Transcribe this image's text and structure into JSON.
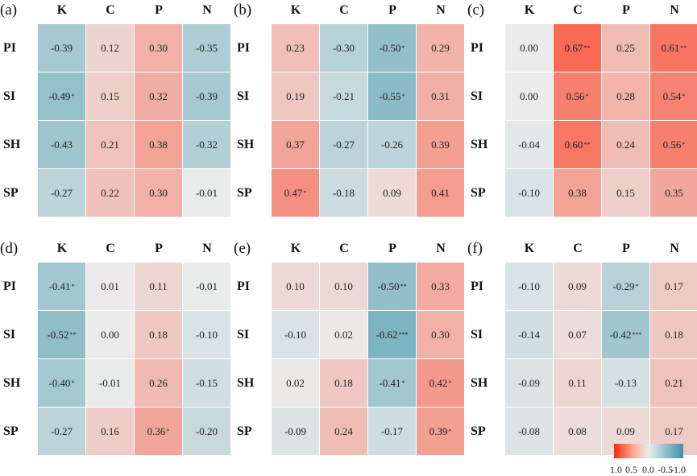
{
  "chart_data": {
    "type": "heatmap",
    "columns": [
      "K",
      "C",
      "P",
      "N"
    ],
    "rows": [
      "PI",
      "SI",
      "SH",
      "SP"
    ],
    "colorbar": {
      "ticks": [
        "1.0",
        "0.5",
        "0.0",
        "-0.5",
        "-1.0"
      ],
      "range": [
        1.0,
        -1.0
      ],
      "colors": {
        "pos": "#ff2a0a",
        "zero": "#ebebeb",
        "neg": "#3a93a8"
      }
    },
    "panels": [
      {
        "label": "(a)",
        "values": [
          [
            -0.39,
            0.12,
            0.3,
            -0.35
          ],
          [
            -0.49,
            0.15,
            0.32,
            -0.39
          ],
          [
            -0.43,
            0.21,
            0.38,
            -0.32
          ],
          [
            -0.27,
            0.22,
            0.3,
            -0.01
          ]
        ],
        "sig": [
          [
            "",
            "",
            "",
            ""
          ],
          [
            "*",
            "",
            "",
            ""
          ],
          [
            "",
            "",
            "",
            ""
          ],
          [
            "",
            "",
            "",
            ""
          ]
        ]
      },
      {
        "label": "(b)",
        "values": [
          [
            0.23,
            -0.3,
            -0.5,
            0.29
          ],
          [
            0.19,
            -0.21,
            -0.55,
            0.31
          ],
          [
            0.37,
            -0.27,
            -0.26,
            0.39
          ],
          [
            0.47,
            -0.18,
            0.09,
            0.41
          ]
        ],
        "sig": [
          [
            "",
            "",
            "*",
            ""
          ],
          [
            "",
            "",
            "*",
            ""
          ],
          [
            "",
            "",
            "",
            ""
          ],
          [
            "*",
            "",
            "",
            ""
          ]
        ]
      },
      {
        "label": "(c)",
        "values": [
          [
            0.0,
            0.67,
            0.25,
            0.61
          ],
          [
            0.0,
            0.56,
            0.28,
            0.54
          ],
          [
            -0.04,
            0.6,
            0.24,
            0.56
          ],
          [
            -0.1,
            0.38,
            0.15,
            0.35
          ]
        ],
        "sig": [
          [
            "",
            "**",
            "",
            "**"
          ],
          [
            "",
            "*",
            "",
            "*"
          ],
          [
            "",
            "**",
            "",
            "*"
          ],
          [
            "",
            "",
            "",
            ""
          ]
        ]
      },
      {
        "label": "(d)",
        "values": [
          [
            -0.41,
            0.01,
            0.11,
            -0.01
          ],
          [
            -0.52,
            0.0,
            0.18,
            -0.1
          ],
          [
            -0.4,
            -0.01,
            0.26,
            -0.15
          ],
          [
            -0.27,
            0.16,
            0.36,
            -0.2
          ]
        ],
        "sig": [
          [
            "*",
            "",
            "",
            ""
          ],
          [
            "**",
            "",
            "",
            ""
          ],
          [
            "*",
            "",
            "",
            ""
          ],
          [
            "",
            "",
            "*",
            ""
          ]
        ]
      },
      {
        "label": "(e)",
        "values": [
          [
            0.1,
            0.1,
            -0.5,
            0.33
          ],
          [
            -0.1,
            0.02,
            -0.62,
            0.3
          ],
          [
            0.02,
            0.18,
            -0.41,
            0.42
          ],
          [
            -0.09,
            0.24,
            -0.17,
            0.39
          ]
        ],
        "sig": [
          [
            "",
            "",
            "**",
            ""
          ],
          [
            "",
            "",
            "***",
            ""
          ],
          [
            "",
            "",
            "*",
            "*"
          ],
          [
            "",
            "",
            "",
            "*"
          ]
        ]
      },
      {
        "label": "(f)",
        "values": [
          [
            -0.1,
            0.09,
            -0.29,
            0.17
          ],
          [
            -0.14,
            0.07,
            -0.42,
            0.18
          ],
          [
            -0.09,
            0.11,
            -0.13,
            0.21
          ],
          [
            -0.08,
            0.08,
            0.09,
            0.17
          ]
        ],
        "sig": [
          [
            "",
            "",
            "*",
            ""
          ],
          [
            "",
            "",
            "***",
            ""
          ],
          [
            "",
            "",
            "",
            ""
          ],
          [
            "",
            "",
            "",
            ""
          ]
        ]
      }
    ]
  }
}
